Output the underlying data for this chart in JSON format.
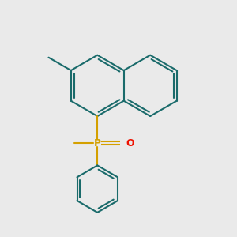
{
  "bg_color": "#eaeaea",
  "bond_color": "#1a6b6b",
  "p_color": "#d4a000",
  "o_color": "#ee1100",
  "line_width": 1.5,
  "figsize": [
    3.0,
    3.0
  ],
  "dpi": 100,
  "xlim": [
    0,
    10
  ],
  "ylim": [
    0,
    10
  ]
}
